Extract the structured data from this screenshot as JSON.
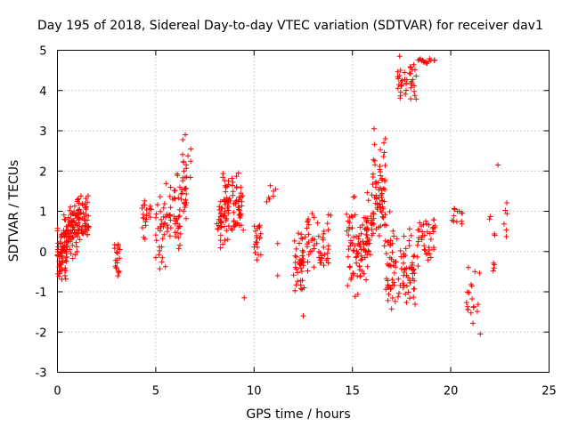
{
  "chart_data": {
    "type": "scatter",
    "title": "Day 195 of 2018, Sidereal Day-to-day VTEC variation (SDTVAR) for receiver dav1",
    "xlabel": "GPS time / hours",
    "ylabel": "SDTVAR / TECUs",
    "xlim": [
      0,
      25
    ],
    "ylim": [
      -3,
      5
    ],
    "xticks": [
      0,
      5,
      10,
      15,
      20,
      25
    ],
    "yticks": [
      -3,
      -2,
      -1,
      0,
      1,
      2,
      3,
      4,
      5
    ],
    "grid": true,
    "marker": "plus",
    "color": "#ff0000",
    "clusters": [
      {
        "x0": 0.0,
        "x1": 0.5,
        "lo": -1.0,
        "hi": 0.8,
        "n": 60
      },
      {
        "x0": 0.3,
        "x1": 1.0,
        "lo": -0.2,
        "hi": 1.2,
        "n": 70
      },
      {
        "x0": 1.0,
        "x1": 1.6,
        "lo": 0.2,
        "hi": 1.6,
        "n": 60
      },
      {
        "x0": 2.9,
        "x1": 3.2,
        "lo": -0.8,
        "hi": 0.5,
        "n": 18
      },
      {
        "x0": 4.3,
        "x1": 4.8,
        "lo": 0.3,
        "hi": 1.5,
        "n": 20
      },
      {
        "x0": 5.0,
        "x1": 5.5,
        "lo": -0.5,
        "hi": 1.5,
        "n": 30
      },
      {
        "x0": 5.5,
        "x1": 6.3,
        "lo": 0.0,
        "hi": 2.0,
        "n": 45
      },
      {
        "x0": 6.3,
        "x1": 6.8,
        "lo": 0.5,
        "hi": 2.9,
        "n": 30
      },
      {
        "x0": 8.1,
        "x1": 8.6,
        "lo": 0.0,
        "hi": 2.0,
        "n": 45
      },
      {
        "x0": 8.6,
        "x1": 9.5,
        "lo": 0.2,
        "hi": 2.0,
        "n": 60
      },
      {
        "x0": 10.0,
        "x1": 10.4,
        "lo": -0.3,
        "hi": 0.8,
        "n": 20
      },
      {
        "x0": 10.5,
        "x1": 11.1,
        "lo": 1.2,
        "hi": 1.7,
        "n": 6
      },
      {
        "x0": 12.0,
        "x1": 12.6,
        "lo": -1.0,
        "hi": 0.6,
        "n": 40
      },
      {
        "x0": 12.6,
        "x1": 13.8,
        "lo": -0.6,
        "hi": 1.0,
        "n": 50
      },
      {
        "x0": 14.7,
        "x1": 15.5,
        "lo": -1.3,
        "hi": 1.5,
        "n": 60
      },
      {
        "x0": 15.5,
        "x1": 16.0,
        "lo": -0.8,
        "hi": 1.6,
        "n": 45
      },
      {
        "x0": 16.0,
        "x1": 16.7,
        "lo": 0.0,
        "hi": 3.0,
        "n": 70
      },
      {
        "x0": 16.7,
        "x1": 17.5,
        "lo": -1.7,
        "hi": 1.0,
        "n": 50
      },
      {
        "x0": 17.5,
        "x1": 18.2,
        "lo": -1.6,
        "hi": 0.8,
        "n": 45
      },
      {
        "x0": 17.3,
        "x1": 18.3,
        "lo": 3.5,
        "hi": 4.8,
        "n": 40
      },
      {
        "x0": 18.3,
        "x1": 19.2,
        "lo": -0.4,
        "hi": 1.0,
        "n": 40
      },
      {
        "x0": 18.3,
        "x1": 19.2,
        "lo": 4.6,
        "hi": 4.8,
        "n": 15
      },
      {
        "x0": 20.0,
        "x1": 20.6,
        "lo": 0.5,
        "hi": 1.1,
        "n": 12
      },
      {
        "x0": 20.8,
        "x1": 21.5,
        "lo": -2.0,
        "hi": -0.3,
        "n": 18
      },
      {
        "x0": 21.9,
        "x1": 22.3,
        "lo": -1.5,
        "hi": 1.3,
        "n": 8
      },
      {
        "x0": 22.7,
        "x1": 22.9,
        "lo": 0.3,
        "hi": 1.3,
        "n": 6
      }
    ],
    "points": [
      [
        3.1,
        -0.5
      ],
      [
        9.5,
        -1.15
      ],
      [
        11.2,
        0.2
      ],
      [
        11.2,
        -0.6
      ],
      [
        12.5,
        -1.6
      ],
      [
        22.4,
        2.15
      ],
      [
        21.5,
        -2.05
      ],
      [
        16.1,
        3.05
      ],
      [
        6.5,
        2.9
      ],
      [
        9.2,
        1.95
      ],
      [
        19.0,
        4.75
      ],
      [
        17.4,
        4.85
      ],
      [
        11.1,
        1.55
      ],
      [
        16.6,
        2.7
      ],
      [
        13.9,
        0.9
      ]
    ]
  }
}
